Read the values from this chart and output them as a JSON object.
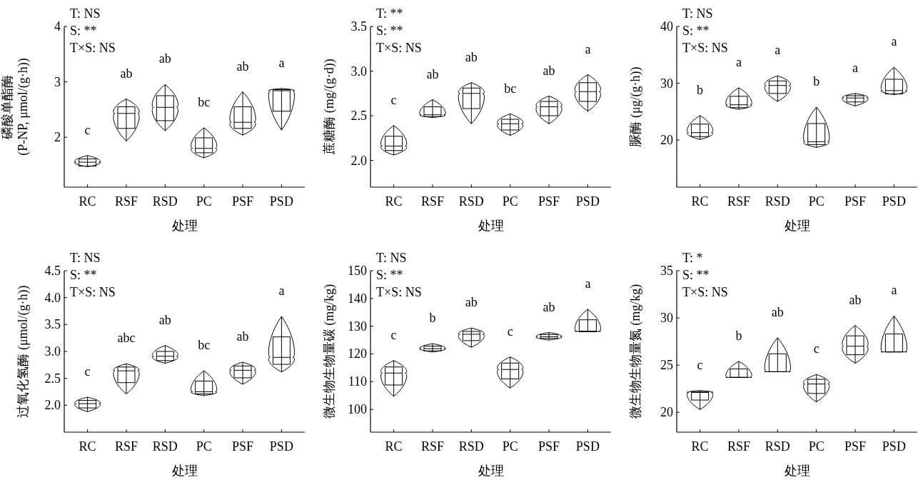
{
  "chart_data": [
    {
      "type": "box",
      "xlabel": "处理",
      "ylabel": "磷酸单酯酶\n(P-NP, μmol/(g·h))",
      "categories": [
        "RC",
        "RSF",
        "RSD",
        "PC",
        "PSF",
        "PSD"
      ],
      "ylim": [
        1.1,
        4
      ],
      "yticks": [
        2,
        3,
        4
      ],
      "boxes": [
        {
          "low": 1.47,
          "q1": 1.48,
          "median": 1.55,
          "q3": 1.61,
          "high": 1.67
        },
        {
          "low": 1.93,
          "q1": 2.16,
          "median": 2.43,
          "q3": 2.55,
          "high": 2.69
        },
        {
          "low": 2.12,
          "q1": 2.3,
          "median": 2.54,
          "q3": 2.75,
          "high": 2.95
        },
        {
          "low": 1.63,
          "q1": 1.72,
          "median": 1.8,
          "q3": 1.99,
          "high": 2.17
        },
        {
          "low": 2.04,
          "q1": 2.16,
          "median": 2.27,
          "q3": 2.55,
          "high": 2.82
        },
        {
          "low": 2.13,
          "q1": 2.47,
          "median": 2.84,
          "q3": 2.86,
          "high": 2.88
        }
      ],
      "annotations": [
        "T: NS",
        "S: **",
        "T×S: NS",
        "c",
        "ab",
        "ab",
        "bc",
        "ab",
        "a"
      ]
    },
    {
      "type": "box",
      "xlabel": "处理",
      "ylabel": "蔗糖酶 (mg/(g·d))",
      "categories": [
        "RC",
        "RSF",
        "RSD",
        "PC",
        "PSF",
        "PSD"
      ],
      "ylim": [
        1.7,
        3.5
      ],
      "yticks": [
        {
          "value": 2,
          "label": "2.0"
        },
        2.5,
        {
          "value": 3,
          "label": "3.0"
        },
        3.5
      ],
      "boxes": [
        {
          "low": 2.06,
          "q1": 2.11,
          "median": 2.16,
          "q3": 2.27,
          "high": 2.39
        },
        {
          "low": 2.48,
          "q1": 2.49,
          "median": 2.51,
          "q3": 2.6,
          "high": 2.68
        },
        {
          "low": 2.41,
          "q1": 2.58,
          "median": 2.75,
          "q3": 2.81,
          "high": 2.87
        },
        {
          "low": 2.28,
          "q1": 2.34,
          "median": 2.41,
          "q3": 2.46,
          "high": 2.52
        },
        {
          "low": 2.41,
          "q1": 2.5,
          "median": 2.6,
          "q3": 2.66,
          "high": 2.72
        },
        {
          "low": 2.55,
          "q1": 2.66,
          "median": 2.77,
          "q3": 2.87,
          "high": 2.96
        }
      ],
      "annotations": [
        "T: **",
        "S: **",
        "T×S: NS",
        "c",
        "ab",
        "ab",
        "bc",
        "ab",
        "a"
      ]
    },
    {
      "type": "box",
      "xlabel": "处理",
      "ylabel": "脲酶 (μg/(g·h))",
      "categories": [
        "RC",
        "RSF",
        "RSD",
        "PC",
        "PSF",
        "PSD"
      ],
      "ylim": [
        11.7,
        40
      ],
      "yticks": [
        20,
        30,
        40
      ],
      "boxes": [
        {
          "low": 20.1,
          "q1": 20.6,
          "median": 21.3,
          "q3": 22.8,
          "high": 24.3
        },
        {
          "low": 25.4,
          "q1": 25.7,
          "median": 26.2,
          "q3": 27.7,
          "high": 29.2
        },
        {
          "low": 26.8,
          "q1": 28.2,
          "median": 29.6,
          "q3": 30.4,
          "high": 31.3
        },
        {
          "low": 18.7,
          "q1": 19.2,
          "median": 19.7,
          "q3": 22.9,
          "high": 25.8
        },
        {
          "low": 26.0,
          "q1": 26.7,
          "median": 27.4,
          "q3": 27.8,
          "high": 28.2
        },
        {
          "low": 28.0,
          "q1": 28.1,
          "median": 28.7,
          "q3": 30.7,
          "high": 32.8
        }
      ],
      "annotations": [
        "T: NS",
        "S: **",
        "T×S: NS",
        "b",
        "a",
        "a",
        "b",
        "a",
        "a"
      ]
    },
    {
      "type": "box",
      "xlabel": "处理",
      "ylabel": "过氧化氢酶 (μmol/(g·h))",
      "categories": [
        "RC",
        "RSF",
        "RSD",
        "PC",
        "PSF",
        "PSD"
      ],
      "ylim": [
        1.5,
        4.5
      ],
      "yticks": [
        {
          "value": 2,
          "label": "2.0"
        },
        2.5,
        {
          "value": 3,
          "label": "3.0"
        },
        3.5,
        {
          "value": 4,
          "label": "4.0"
        },
        4.5
      ],
      "boxes": [
        {
          "low": 1.88,
          "q1": 1.95,
          "median": 2.03,
          "q3": 2.09,
          "high": 2.15
        },
        {
          "low": 2.21,
          "q1": 2.42,
          "median": 2.64,
          "q3": 2.71,
          "high": 2.77
        },
        {
          "low": 2.78,
          "q1": 2.83,
          "median": 2.91,
          "q3": 3.0,
          "high": 3.11
        },
        {
          "low": 2.18,
          "q1": 2.21,
          "median": 2.25,
          "q3": 2.45,
          "high": 2.64
        },
        {
          "low": 2.39,
          "q1": 2.51,
          "median": 2.65,
          "q3": 2.73,
          "high": 2.8
        },
        {
          "low": 2.62,
          "q1": 2.76,
          "median": 2.89,
          "q3": 3.27,
          "high": 3.65
        }
      ],
      "annotations": [
        "T: NS",
        "S: **",
        "T×S: NS",
        "c",
        "abc",
        "ab",
        "bc",
        "ab",
        "a"
      ]
    },
    {
      "type": "box",
      "xlabel": "处理",
      "ylabel": "微生物生物量碳 (mg/kg)",
      "categories": [
        "RC",
        "RSF",
        "RSD",
        "PC",
        "PSF",
        "PSD"
      ],
      "ylim": [
        91.8,
        150
      ],
      "yticks": [
        100,
        110,
        120,
        130,
        140,
        150
      ],
      "boxes": [
        {
          "low": 104.7,
          "q1": 108.8,
          "median": 113.1,
          "q3": 115.3,
          "high": 117.6
        },
        {
          "low": 120.7,
          "q1": 121.1,
          "median": 121.9,
          "q3": 122.8,
          "high": 123.7
        },
        {
          "low": 122.4,
          "q1": 124.8,
          "median": 127.1,
          "q3": 128.1,
          "high": 129.3
        },
        {
          "low": 107.7,
          "q1": 111.0,
          "median": 114.4,
          "q3": 116.7,
          "high": 118.9
        },
        {
          "low": 125.0,
          "q1": 125.6,
          "median": 126.2,
          "q3": 127.0,
          "high": 127.7
        },
        {
          "low": 128.0,
          "q1": 128.0,
          "median": 128.2,
          "q3": 132.3,
          "high": 136.1
        }
      ],
      "annotations": [
        "T: NS",
        "S: **",
        "T×S: NS",
        "c",
        "b",
        "ab",
        "c",
        "ab",
        "a"
      ]
    },
    {
      "type": "box",
      "xlabel": "处理",
      "ylabel": "微生物生物量氮 (mg/kg)",
      "categories": [
        "RC",
        "RSF",
        "RSD",
        "PC",
        "PSF",
        "PSD"
      ],
      "ylim": [
        17.9,
        35
      ],
      "yticks": [
        20,
        25,
        30,
        35
      ],
      "boxes": [
        {
          "low": 20.3,
          "q1": 21.3,
          "median": 22.1,
          "q3": 22.2,
          "high": 22.3
        },
        {
          "low": 23.7,
          "q1": 23.7,
          "median": 23.7,
          "q3": 24.6,
          "high": 25.4
        },
        {
          "low": 24.3,
          "q1": 24.3,
          "median": 24.3,
          "q3": 26.2,
          "high": 27.9
        },
        {
          "low": 21.1,
          "q1": 22.0,
          "median": 23.0,
          "q3": 23.5,
          "high": 24.0
        },
        {
          "low": 25.2,
          "q1": 26.1,
          "median": 27.0,
          "q3": 28.1,
          "high": 29.2
        },
        {
          "low": 26.4,
          "q1": 26.4,
          "median": 26.4,
          "q3": 28.3,
          "high": 30.2
        }
      ],
      "annotations": [
        "T: *",
        "S: **",
        "T×S: NS",
        "c",
        "b",
        "ab",
        "c",
        "ab",
        "a"
      ]
    }
  ]
}
